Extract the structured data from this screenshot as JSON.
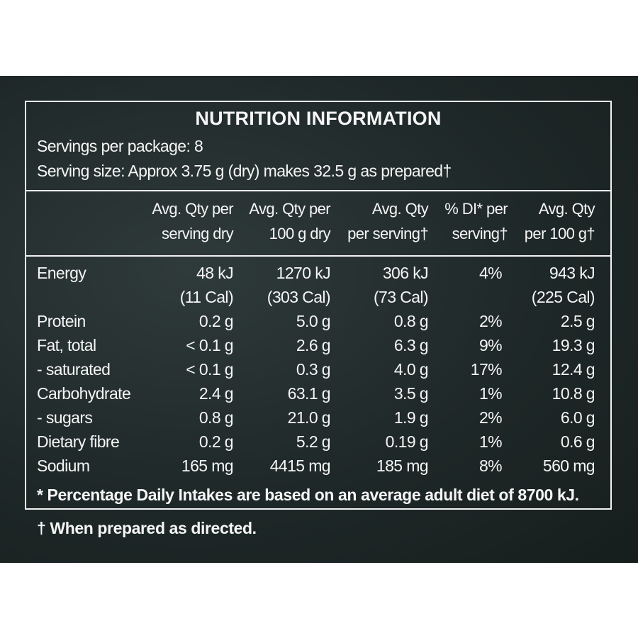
{
  "title": "NUTRITION INFORMATION",
  "servings_per_package": "Servings per package: 8",
  "serving_size": "Serving size: Approx 3.75 g (dry) makes 32.5 g as prepared†",
  "headers": [
    {
      "line1": "Avg. Qty per",
      "line2": "serving dry"
    },
    {
      "line1": "Avg. Qty per",
      "line2": "100 g dry"
    },
    {
      "line1": "Avg. Qty",
      "line2": "per serving†"
    },
    {
      "line1": "% DI* per",
      "line2": "serving†"
    },
    {
      "line1": "Avg. Qty",
      "line2": "per 100 g†"
    }
  ],
  "rows": [
    {
      "label": "Energy",
      "values": [
        "48 kJ",
        "1270 kJ",
        "306 kJ",
        "4%",
        "943 kJ"
      ]
    },
    {
      "label": "",
      "values": [
        "(11 Cal)",
        "(303 Cal)",
        "(73 Cal)",
        "",
        "(225 Cal)"
      ]
    },
    {
      "label": "Protein",
      "values": [
        "0.2 g",
        "5.0 g",
        "0.8 g",
        "2%",
        "2.5 g"
      ]
    },
    {
      "label": "Fat, total",
      "values": [
        "< 0.1 g",
        "2.6 g",
        "6.3 g",
        "9%",
        "19.3 g"
      ]
    },
    {
      "label": "- saturated",
      "values": [
        "< 0.1 g",
        "0.3 g",
        "4.0 g",
        "17%",
        "12.4 g"
      ]
    },
    {
      "label": "Carbohydrate",
      "values": [
        "2.4 g",
        "63.1 g",
        "3.5 g",
        "1%",
        "10.8 g"
      ]
    },
    {
      "label": "- sugars",
      "values": [
        "0.8 g",
        "21.0 g",
        "1.9 g",
        "2%",
        "6.0 g"
      ]
    },
    {
      "label": "Dietary fibre",
      "values": [
        "0.2 g",
        "5.2 g",
        "0.19 g",
        "1%",
        "0.6 g"
      ]
    },
    {
      "label": "Sodium",
      "values": [
        "165 mg",
        "4415 mg",
        "185 mg",
        "8%",
        "560 mg"
      ]
    }
  ],
  "footnote": "* Percentage Daily Intakes are based on an average adult diet of 8700 kJ.",
  "note_below": "† When prepared as directed."
}
